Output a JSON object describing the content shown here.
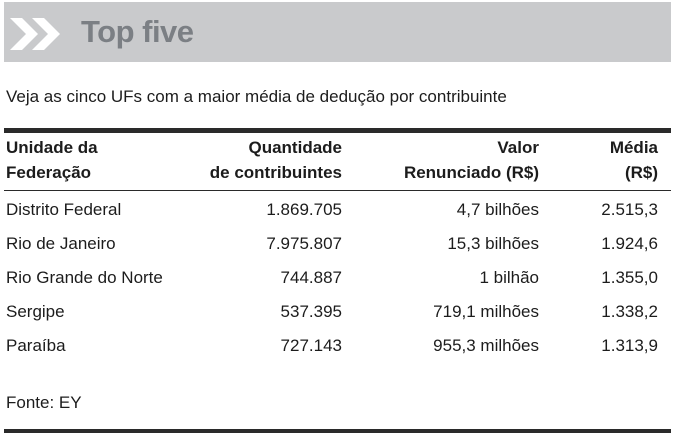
{
  "banner": {
    "title": "Top five",
    "icon": "double-chevron-right-icon",
    "background": "#c9cacc",
    "title_color": "#7b7f84"
  },
  "subtitle": "Veja as cinco UFs com a maior média de dedução por contribuinte",
  "table": {
    "headers": [
      "Unidade da\nFederação",
      "Quantidade\nde contribuintes",
      "Valor\nRenunciado (R$)",
      "Média\n(R$)"
    ],
    "rows": [
      [
        "Distrito Federal",
        "1.869.705",
        "4,7 bilhões",
        "2.515,3"
      ],
      [
        "Rio de Janeiro",
        "7.975.807",
        "15,3 bilhões",
        "1.924,6"
      ],
      [
        "Rio Grande do Norte",
        "744.887",
        "1 bilhão",
        "1.355,0"
      ],
      [
        "Sergipe",
        "537.395",
        "719,1 milhões",
        "1.338,2"
      ],
      [
        "Paraíba",
        "727.143",
        "955,3 milhões",
        "1.313,9"
      ]
    ]
  },
  "source": "Fonte: EY"
}
